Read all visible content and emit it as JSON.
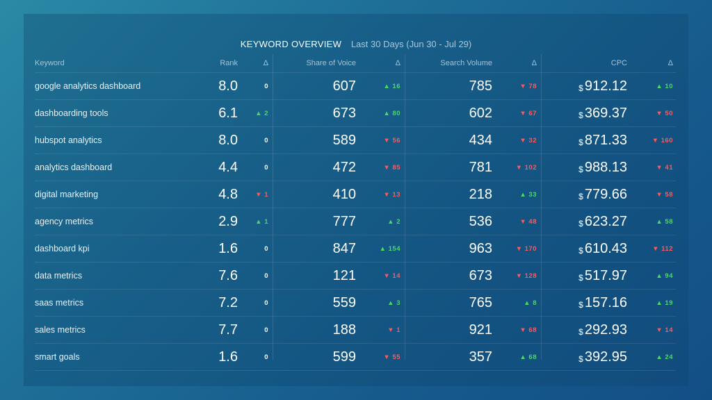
{
  "widget": {
    "title": "KEYWORD OVERVIEW",
    "range": "Last 30 Days (Jun 30 - Jul 29)"
  },
  "columns": {
    "keyword": "Keyword",
    "rank": "Rank",
    "delta": "Δ",
    "share_of_voice": "Share of Voice",
    "search_volume": "Search Volume",
    "cpc": "CPC",
    "currency": "$"
  },
  "colors": {
    "up": "#4cd964",
    "down": "#ff5a5a"
  },
  "rows": [
    {
      "keyword": "google analytics dashboard",
      "rank": "8.0",
      "rank_delta": "0",
      "rank_dir": "zero",
      "sov": "607",
      "sov_delta": "▲ 16",
      "sov_dir": "up",
      "sv": "785",
      "sv_delta": "▼ 78",
      "sv_dir": "down",
      "cpc": "912.12",
      "cpc_delta": "▲ 10",
      "cpc_dir": "up"
    },
    {
      "keyword": "dashboarding tools",
      "rank": "6.1",
      "rank_delta": "▲ 2",
      "rank_dir": "up",
      "sov": "673",
      "sov_delta": "▲ 80",
      "sov_dir": "up",
      "sv": "602",
      "sv_delta": "▼ 67",
      "sv_dir": "down",
      "cpc": "369.37",
      "cpc_delta": "▼ 50",
      "cpc_dir": "down"
    },
    {
      "keyword": "hubspot analytics",
      "rank": "8.0",
      "rank_delta": "0",
      "rank_dir": "zero",
      "sov": "589",
      "sov_delta": "▼ 56",
      "sov_dir": "down",
      "sv": "434",
      "sv_delta": "▼ 32",
      "sv_dir": "down",
      "cpc": "871.33",
      "cpc_delta": "▼ 160",
      "cpc_dir": "down"
    },
    {
      "keyword": "analytics dashboard",
      "rank": "4.4",
      "rank_delta": "0",
      "rank_dir": "zero",
      "sov": "472",
      "sov_delta": "▼ 85",
      "sov_dir": "down",
      "sv": "781",
      "sv_delta": "▼ 102",
      "sv_dir": "down",
      "cpc": "988.13",
      "cpc_delta": "▼ 41",
      "cpc_dir": "down"
    },
    {
      "keyword": "digital marketing",
      "rank": "4.8",
      "rank_delta": "▼ 1",
      "rank_dir": "down",
      "sov": "410",
      "sov_delta": "▼ 13",
      "sov_dir": "down",
      "sv": "218",
      "sv_delta": "▲ 33",
      "sv_dir": "up",
      "cpc": "779.66",
      "cpc_delta": "▼ 58",
      "cpc_dir": "down"
    },
    {
      "keyword": "agency metrics",
      "rank": "2.9",
      "rank_delta": "▲ 1",
      "rank_dir": "up",
      "sov": "777",
      "sov_delta": "▲ 2",
      "sov_dir": "up",
      "sv": "536",
      "sv_delta": "▼ 48",
      "sv_dir": "down",
      "cpc": "623.27",
      "cpc_delta": "▲ 58",
      "cpc_dir": "up"
    },
    {
      "keyword": "dashboard kpi",
      "rank": "1.6",
      "rank_delta": "0",
      "rank_dir": "zero",
      "sov": "847",
      "sov_delta": "▲ 154",
      "sov_dir": "up",
      "sv": "963",
      "sv_delta": "▼ 170",
      "sv_dir": "down",
      "cpc": "610.43",
      "cpc_delta": "▼ 112",
      "cpc_dir": "down"
    },
    {
      "keyword": "data metrics",
      "rank": "7.6",
      "rank_delta": "0",
      "rank_dir": "zero",
      "sov": "121",
      "sov_delta": "▼ 14",
      "sov_dir": "down",
      "sv": "673",
      "sv_delta": "▼ 128",
      "sv_dir": "down",
      "cpc": "517.97",
      "cpc_delta": "▲ 94",
      "cpc_dir": "up"
    },
    {
      "keyword": "saas metrics",
      "rank": "7.2",
      "rank_delta": "0",
      "rank_dir": "zero",
      "sov": "559",
      "sov_delta": "▲ 3",
      "sov_dir": "up",
      "sv": "765",
      "sv_delta": "▲ 8",
      "sv_dir": "up",
      "cpc": "157.16",
      "cpc_delta": "▲ 19",
      "cpc_dir": "up"
    },
    {
      "keyword": "sales metrics",
      "rank": "7.7",
      "rank_delta": "0",
      "rank_dir": "zero",
      "sov": "188",
      "sov_delta": "▼ 1",
      "sov_dir": "down",
      "sv": "921",
      "sv_delta": "▼ 68",
      "sv_dir": "down",
      "cpc": "292.93",
      "cpc_delta": "▼ 14",
      "cpc_dir": "down"
    },
    {
      "keyword": "smart goals",
      "rank": "1.6",
      "rank_delta": "0",
      "rank_dir": "zero",
      "sov": "599",
      "sov_delta": "▼ 55",
      "sov_dir": "down",
      "sv": "357",
      "sv_delta": "▲ 68",
      "sv_dir": "up",
      "cpc": "392.95",
      "cpc_delta": "▲ 24",
      "cpc_dir": "up"
    }
  ]
}
